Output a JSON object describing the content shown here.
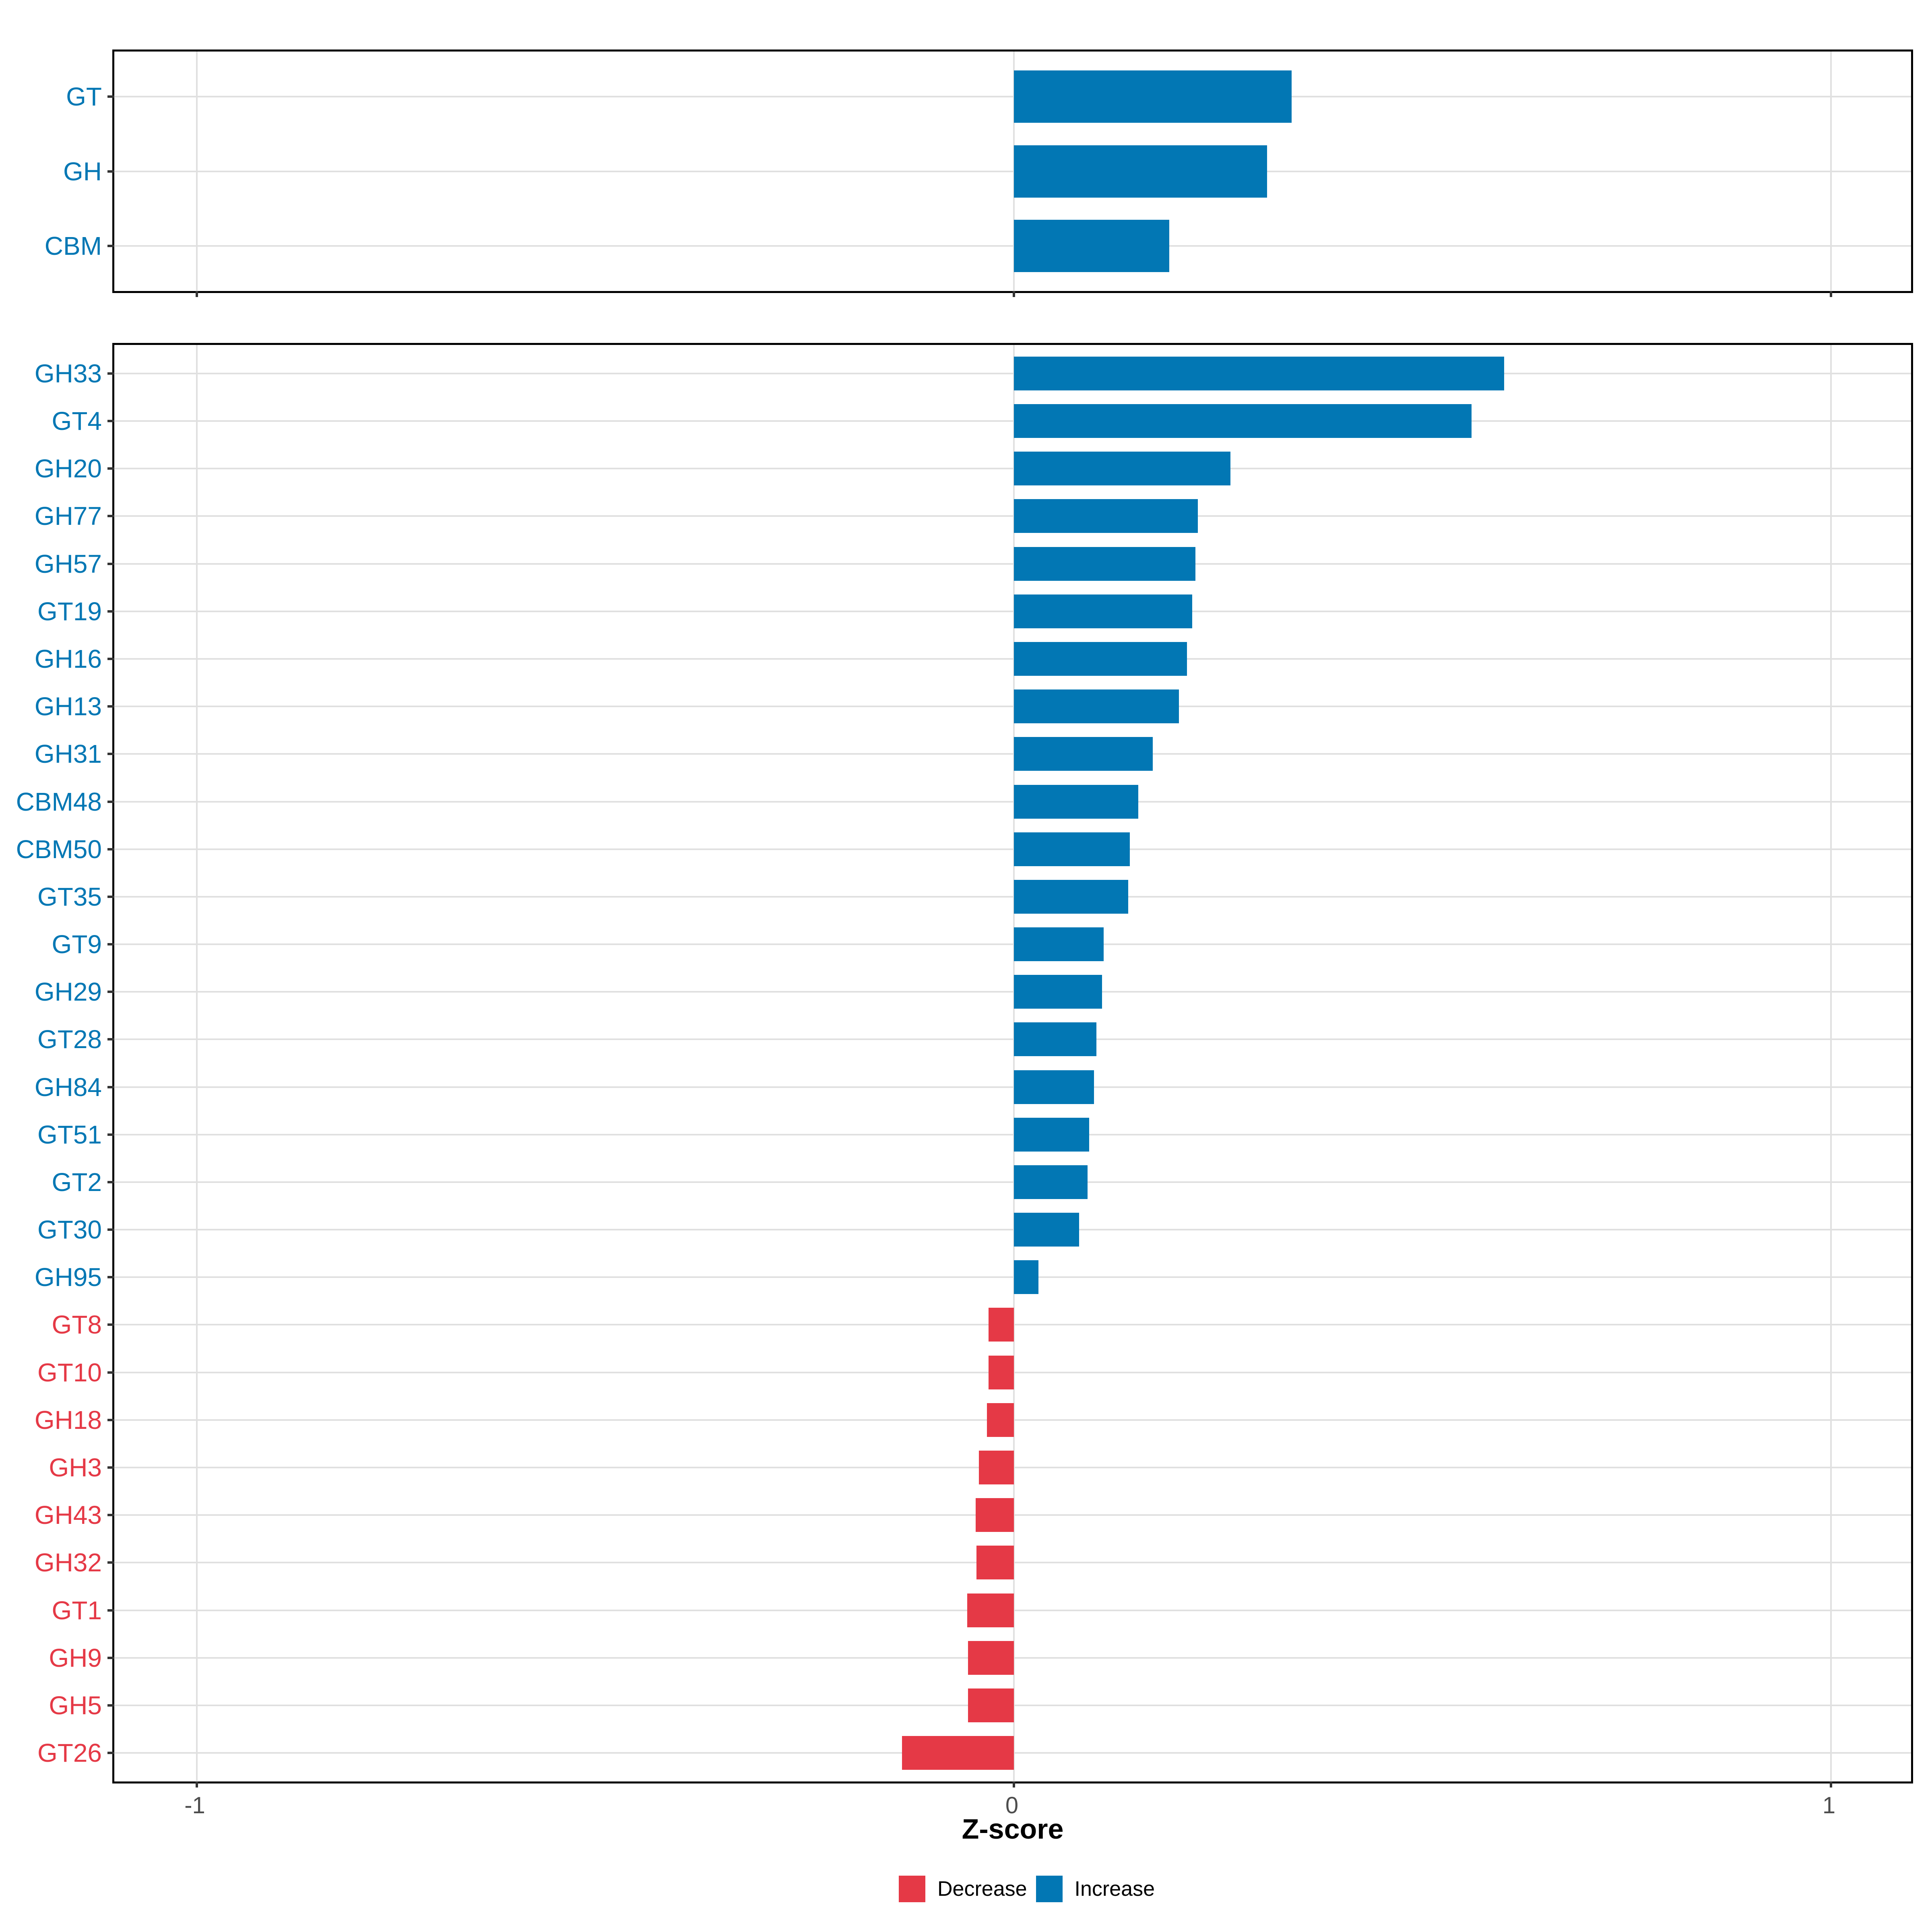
{
  "axis": {
    "title": "Z-score",
    "ticks": [
      {
        "label": "-1",
        "value": -1
      },
      {
        "label": "0",
        "value": 0
      },
      {
        "label": "1",
        "value": 1
      }
    ],
    "xlim": [
      -1.102,
      1.102
    ]
  },
  "legend": {
    "items": [
      {
        "label": "Decrease",
        "color": "#e53946"
      },
      {
        "label": "Increase",
        "color": "#0277b4"
      }
    ]
  },
  "colors": {
    "increase": "#0277b4",
    "decrease": "#e53946",
    "grid": "#e0e0e0",
    "axis_text": "#4d4d4d",
    "tick_mark": "#333333",
    "panel_border": "#000000",
    "background": "#ffffff"
  },
  "chart_data": [
    {
      "type": "bar",
      "orientation": "horizontal",
      "panel": "top",
      "title": "",
      "xlabel": "Z-score",
      "ylabel": "",
      "xlim": [
        -1.1,
        1.1
      ],
      "grid": true,
      "categories": [
        "GT",
        "GH",
        "CBM"
      ],
      "values": [
        0.34,
        0.31,
        0.19
      ],
      "bar_colors_rule": "blue #0277b4 if value >= 0 (Increase), red #e53946 if value < 0 (Decrease)"
    },
    {
      "type": "bar",
      "orientation": "horizontal",
      "panel": "bottom",
      "title": "",
      "xlabel": "Z-score",
      "ylabel": "",
      "xlim": [
        -1.1,
        1.1
      ],
      "grid": true,
      "categories": [
        "GH33",
        "GT4",
        "GH20",
        "GH77",
        "GH57",
        "GT19",
        "GH16",
        "GH13",
        "GH31",
        "CBM48",
        "CBM50",
        "GT35",
        "GT9",
        "GH29",
        "GT28",
        "GH84",
        "GT51",
        "GT2",
        "GT30",
        "GH95",
        "GT8",
        "GT10",
        "GH18",
        "GH3",
        "GH43",
        "GH32",
        "GT1",
        "GH9",
        "GH5",
        "GT26"
      ],
      "values": [
        0.6,
        0.56,
        0.265,
        0.225,
        0.222,
        0.218,
        0.212,
        0.202,
        0.17,
        0.152,
        0.142,
        0.14,
        0.11,
        0.108,
        0.101,
        0.098,
        0.092,
        0.09,
        0.08,
        0.03,
        -0.031,
        -0.031,
        -0.033,
        -0.043,
        -0.047,
        -0.046,
        -0.057,
        -0.056,
        -0.056,
        -0.137
      ],
      "bar_colors_rule": "blue #0277b4 if value >= 0 (Increase), red #e53946 if value < 0 (Decrease)"
    }
  ]
}
